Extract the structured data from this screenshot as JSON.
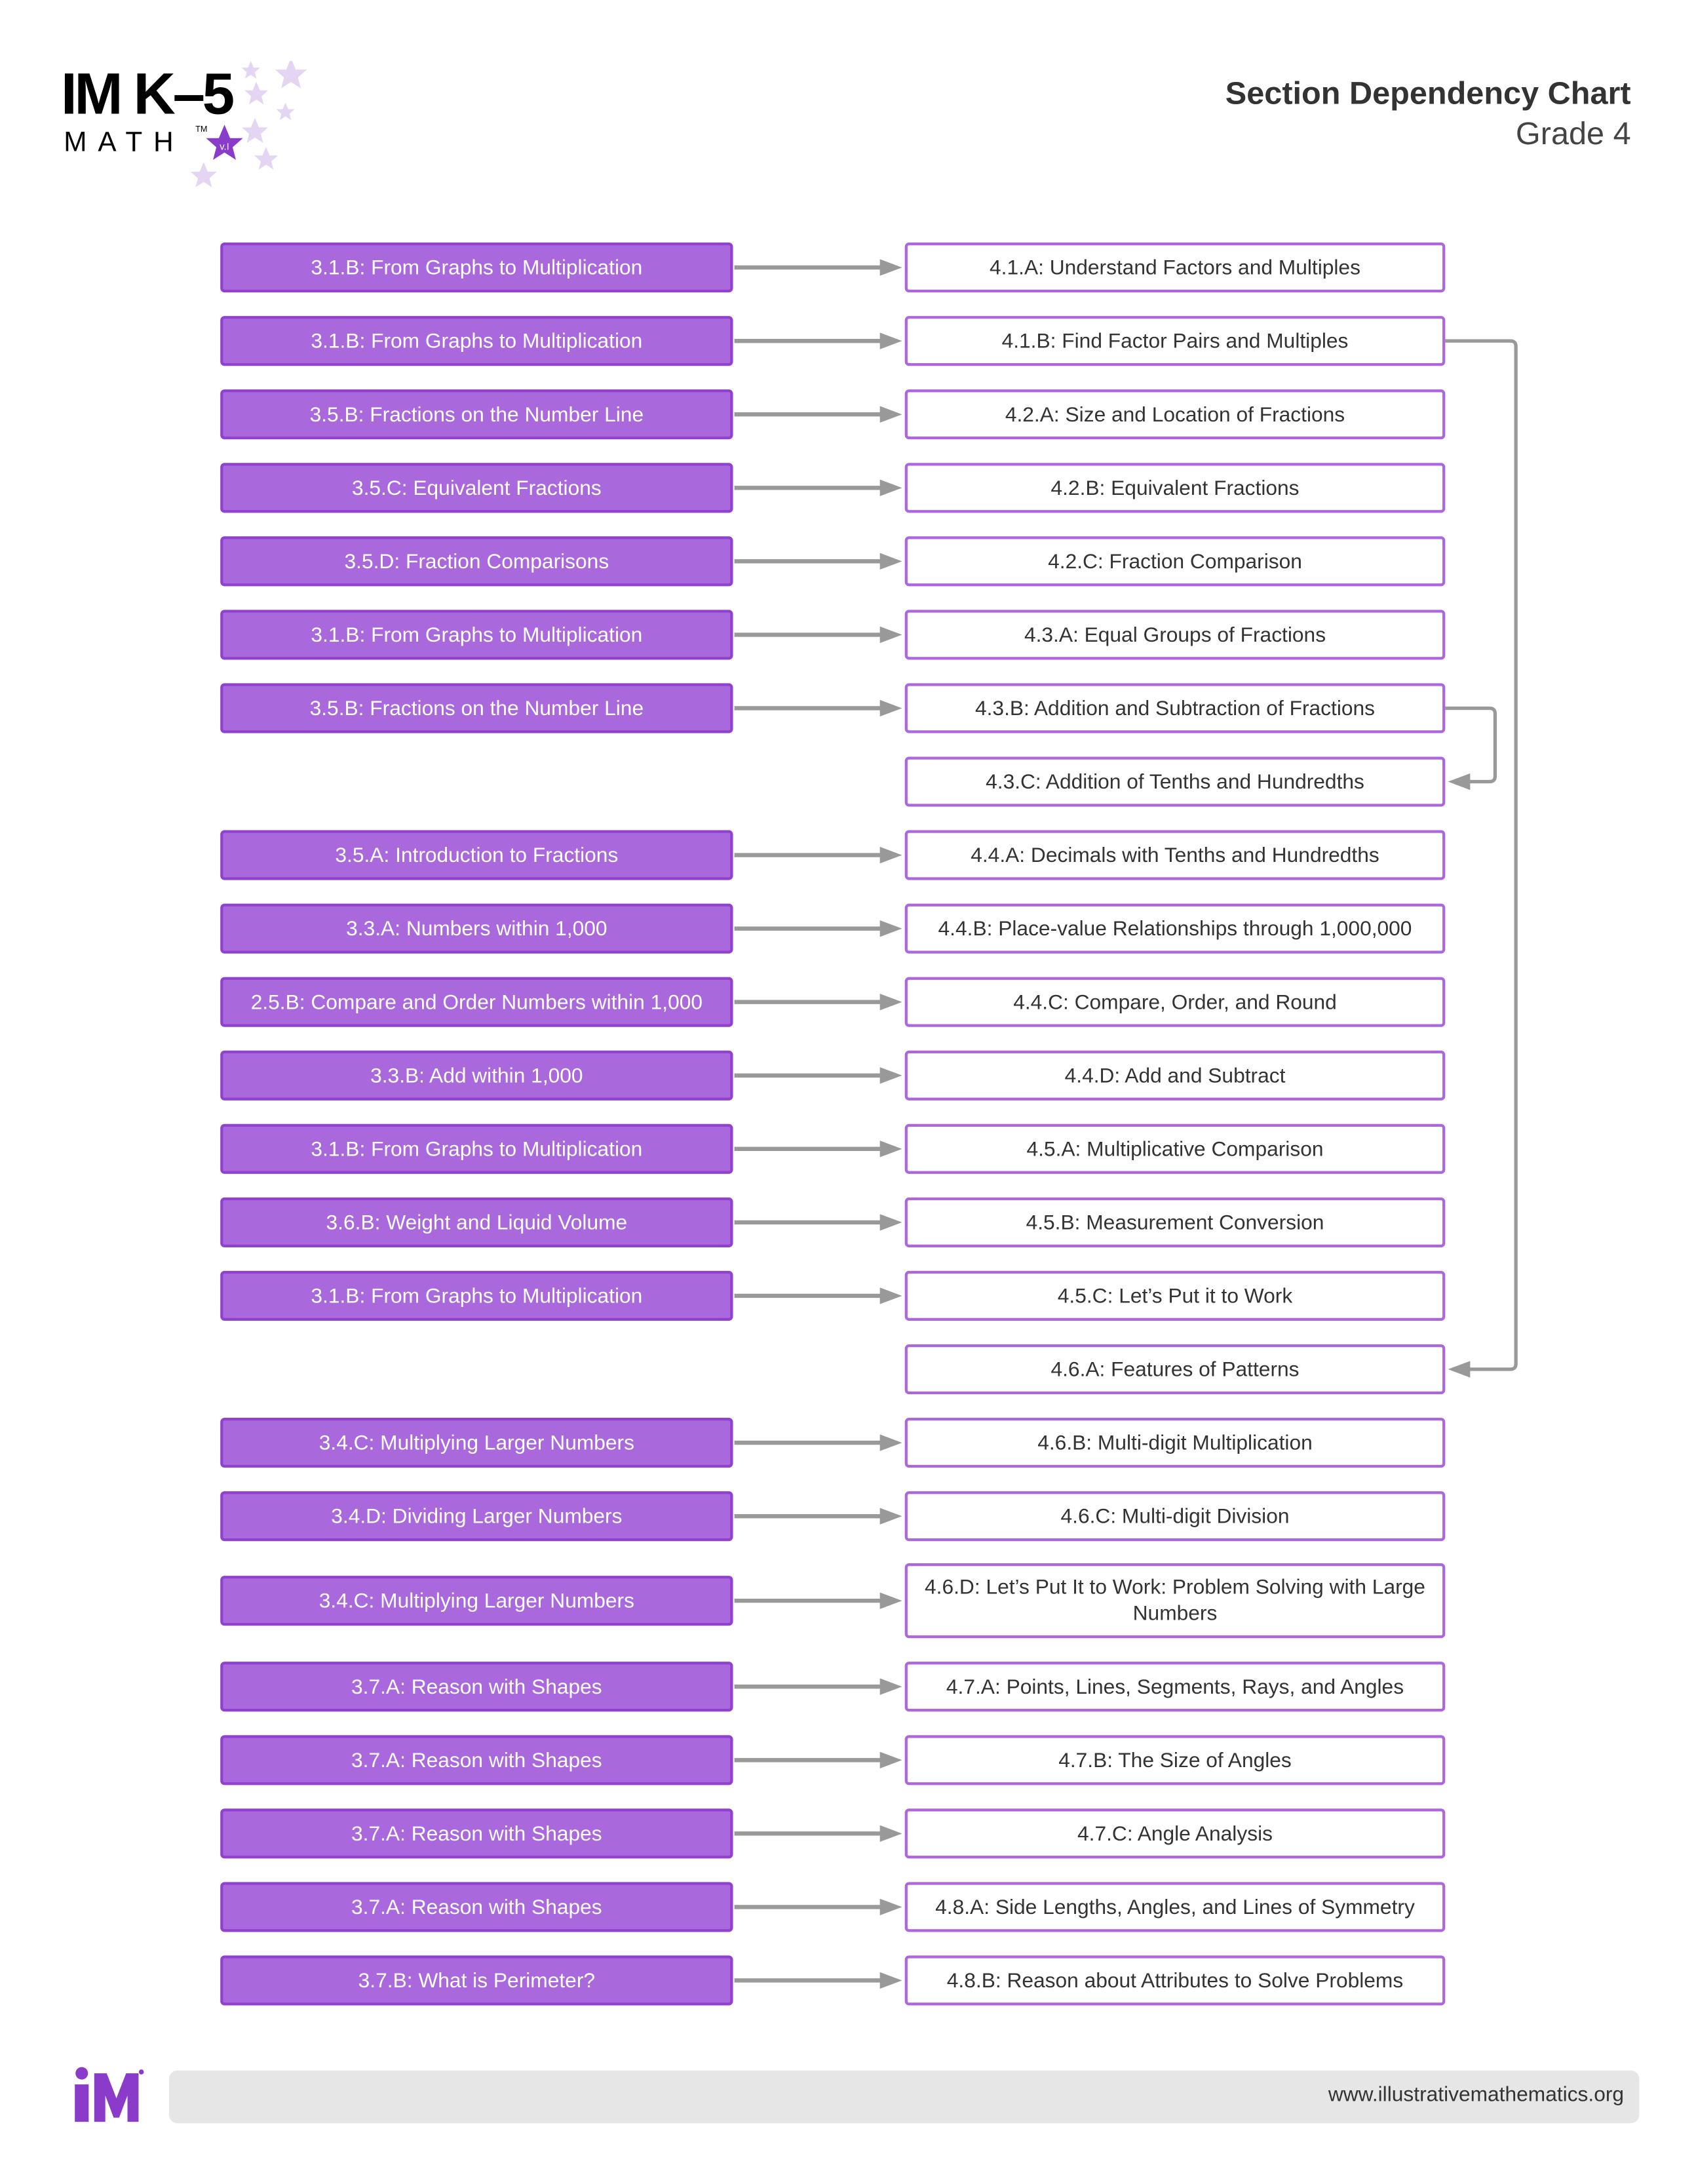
{
  "header": {
    "title": "Section Dependency Chart",
    "subtitle": "Grade 4",
    "logo": {
      "line1": "IM K–5",
      "line2": "MATH",
      "tm": "TM",
      "version": "v.I"
    }
  },
  "colors": {
    "prerequisite_fill": "#a968db",
    "prerequisite_border": "#9140cf",
    "section_border": "#ad66de",
    "arrow": "#999999",
    "brand": "#8b3bc9"
  },
  "rows": [
    {
      "from": "3.1.B: From Graphs to Multiplication",
      "to": "4.1.A: Understand Factors and Multiples"
    },
    {
      "from": "3.1.B: From Graphs to Multiplication",
      "to": "4.1.B: Find Factor Pairs and Multiples"
    },
    {
      "from": "3.5.B: Fractions on the Number Line",
      "to": "4.2.A: Size and Location of Fractions"
    },
    {
      "from": "3.5.C: Equivalent Fractions",
      "to": "4.2.B: Equivalent Fractions"
    },
    {
      "from": "3.5.D: Fraction Comparisons",
      "to": "4.2.C: Fraction Comparison"
    },
    {
      "from": "3.1.B: From Graphs to Multiplication",
      "to": "4.3.A: Equal Groups of Fractions"
    },
    {
      "from": "3.5.B: Fractions on the Number Line",
      "to": "4.3.B: Addition and Subtraction of Fractions"
    },
    {
      "from": "",
      "to": "4.3.C: Addition of Tenths and Hundredths"
    },
    {
      "from": "3.5.A: Introduction to Fractions",
      "to": "4.4.A: Decimals with Tenths and Hundredths"
    },
    {
      "from": "3.3.A: Numbers within 1,000",
      "to": "4.4.B: Place-value Relationships through 1,000,000"
    },
    {
      "from": "2.5.B: Compare and Order Numbers within 1,000",
      "to": "4.4.C: Compare, Order, and Round"
    },
    {
      "from": "3.3.B: Add within 1,000",
      "to": "4.4.D: Add and Subtract"
    },
    {
      "from": "3.1.B: From Graphs to Multiplication",
      "to": "4.5.A: Multiplicative Comparison"
    },
    {
      "from": "3.6.B: Weight and Liquid Volume",
      "to": "4.5.B: Measurement Conversion"
    },
    {
      "from": "3.1.B: From Graphs to Multiplication",
      "to": "4.5.C: Let’s Put it to Work"
    },
    {
      "from": "",
      "to": "4.6.A: Features of Patterns"
    },
    {
      "from": "3.4.C: Multiplying Larger Numbers",
      "to": "4.6.B: Multi-digit Multiplication"
    },
    {
      "from": "3.4.D: Dividing Larger Numbers",
      "to": "4.6.C: Multi-digit Division"
    },
    {
      "from": "3.4.C: Multiplying Larger Numbers",
      "to": "4.6.D: Let’s Put It to Work: Problem Solving with Large Numbers"
    },
    {
      "from": "3.7.A: Reason with Shapes",
      "to": "4.7.A: Points, Lines, Segments, Rays, and Angles"
    },
    {
      "from": "3.7.A: Reason with Shapes",
      "to": "4.7.B: The Size of Angles"
    },
    {
      "from": "3.7.A: Reason with Shapes",
      "to": "4.7.C: Angle Analysis"
    },
    {
      "from": "3.7.A: Reason with Shapes",
      "to": "4.8.A: Side Lengths, Angles, and Lines of Symmetry"
    },
    {
      "from": "3.7.B: What is Perimeter?",
      "to": "4.8.B: Reason about Attributes to Solve Problems"
    }
  ],
  "internal_links": [
    {
      "from": "4.1.B: Find Factor Pairs and Multiples",
      "to": "4.6.A: Features of Patterns"
    },
    {
      "from": "4.3.B: Addition and Subtraction of Fractions",
      "to": "4.3.C: Addition of Tenths and Hundredths"
    }
  ],
  "footer": {
    "url": "www.illustrativemathematics.org",
    "logo": "iM"
  }
}
